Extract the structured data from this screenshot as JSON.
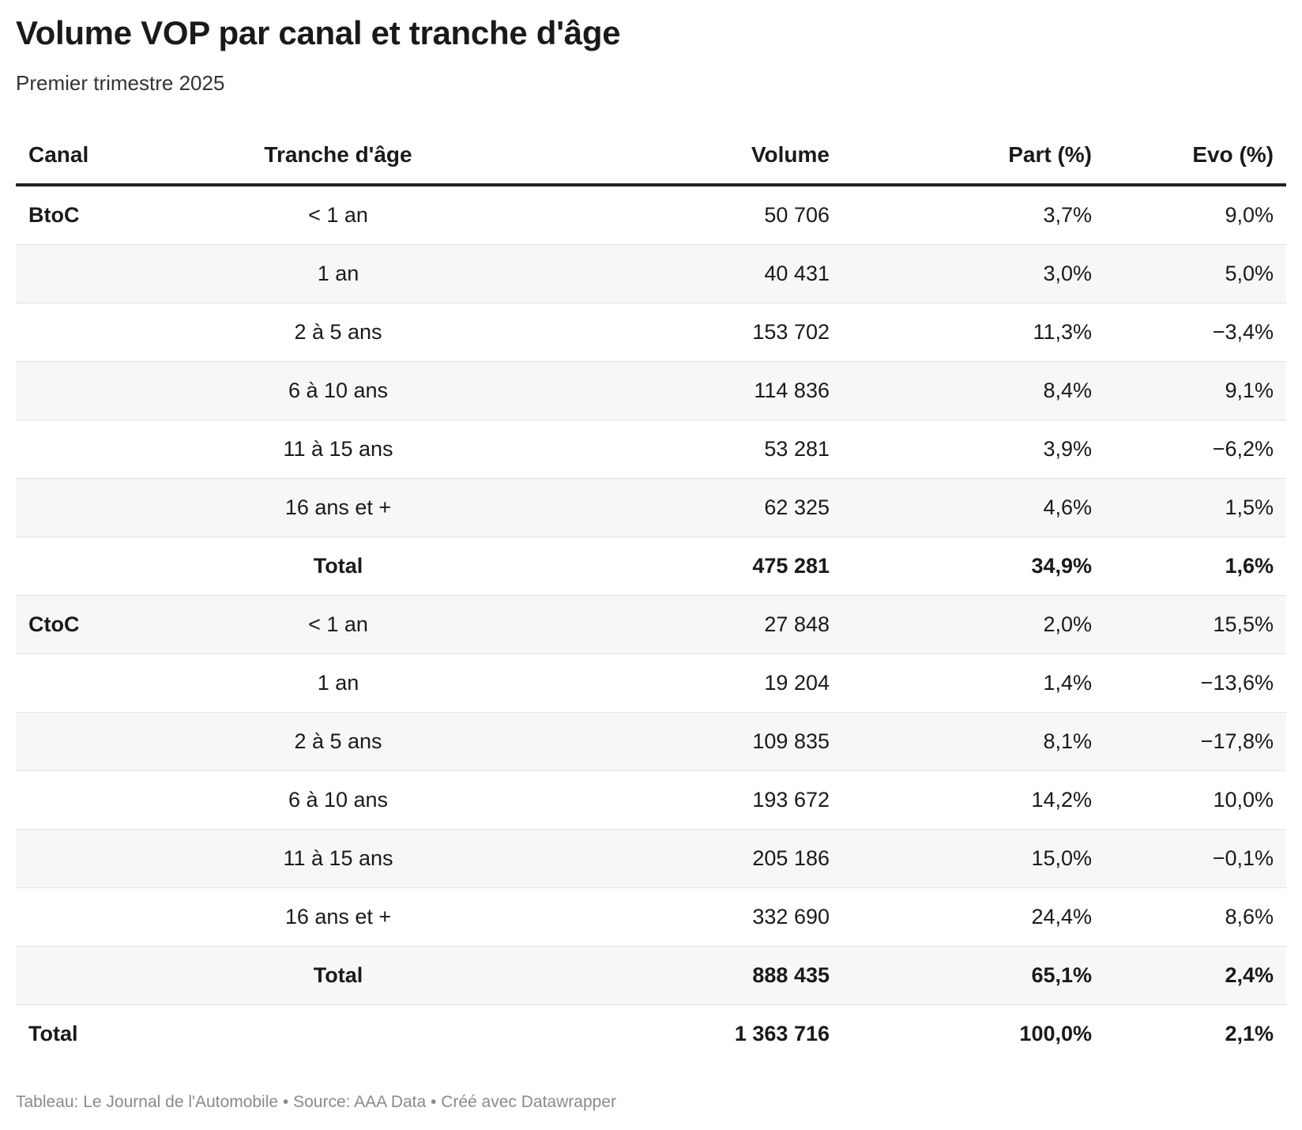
{
  "header": {
    "title": "Volume VOP par canal et tranche d'âge",
    "subtitle": "Premier trimestre 2025"
  },
  "chart_data": {
    "type": "table",
    "title": "Volume VOP par canal et tranche d'âge",
    "subtitle": "Premier trimestre 2025",
    "columns": [
      "Canal",
      "Tranche d'âge",
      "Volume",
      "Part (%)",
      "Evo (%)"
    ],
    "rows": [
      {
        "canal": "BtoC",
        "age": "< 1 an",
        "volume": "50 706",
        "part": "3,7%",
        "evo": "9,0%",
        "bold": false
      },
      {
        "canal": "",
        "age": "1 an",
        "volume": "40 431",
        "part": "3,0%",
        "evo": "5,0%",
        "bold": false
      },
      {
        "canal": "",
        "age": "2 à 5 ans",
        "volume": "153 702",
        "part": "11,3%",
        "evo": "−3,4%",
        "bold": false
      },
      {
        "canal": "",
        "age": "6 à 10 ans",
        "volume": "114 836",
        "part": "8,4%",
        "evo": "9,1%",
        "bold": false
      },
      {
        "canal": "",
        "age": "11 à 15 ans",
        "volume": "53 281",
        "part": "3,9%",
        "evo": "−6,2%",
        "bold": false
      },
      {
        "canal": "",
        "age": "16 ans et +",
        "volume": "62 325",
        "part": "4,6%",
        "evo": "1,5%",
        "bold": false
      },
      {
        "canal": "",
        "age": "Total",
        "volume": "475 281",
        "part": "34,9%",
        "evo": "1,6%",
        "bold": true
      },
      {
        "canal": "CtoC",
        "age": "< 1 an",
        "volume": "27 848",
        "part": "2,0%",
        "evo": "15,5%",
        "bold": false
      },
      {
        "canal": "",
        "age": "1 an",
        "volume": "19 204",
        "part": "1,4%",
        "evo": "−13,6%",
        "bold": false
      },
      {
        "canal": "",
        "age": "2 à 5 ans",
        "volume": "109 835",
        "part": "8,1%",
        "evo": "−17,8%",
        "bold": false
      },
      {
        "canal": "",
        "age": "6 à 10 ans",
        "volume": "193 672",
        "part": "14,2%",
        "evo": "10,0%",
        "bold": false
      },
      {
        "canal": "",
        "age": "11 à 15 ans",
        "volume": "205 186",
        "part": "15,0%",
        "evo": "−0,1%",
        "bold": false
      },
      {
        "canal": "",
        "age": "16 ans et +",
        "volume": "332 690",
        "part": "24,4%",
        "evo": "8,6%",
        "bold": false
      },
      {
        "canal": "",
        "age": "Total",
        "volume": "888 435",
        "part": "65,1%",
        "evo": "2,4%",
        "bold": true
      },
      {
        "canal": "Total",
        "age": "",
        "volume": "1 363 716",
        "part": "100,0%",
        "evo": "2,1%",
        "bold": true
      }
    ]
  },
  "footer": {
    "text": "Tableau: Le Journal de l'Automobile • Source: AAA Data • Créé avec Datawrapper"
  },
  "colors": {
    "text": "#1a1a1a",
    "stripe": "#f7f7f7",
    "header_rule": "#222222",
    "row_rule": "#e2e2e2",
    "footer": "#8a8a8a"
  }
}
